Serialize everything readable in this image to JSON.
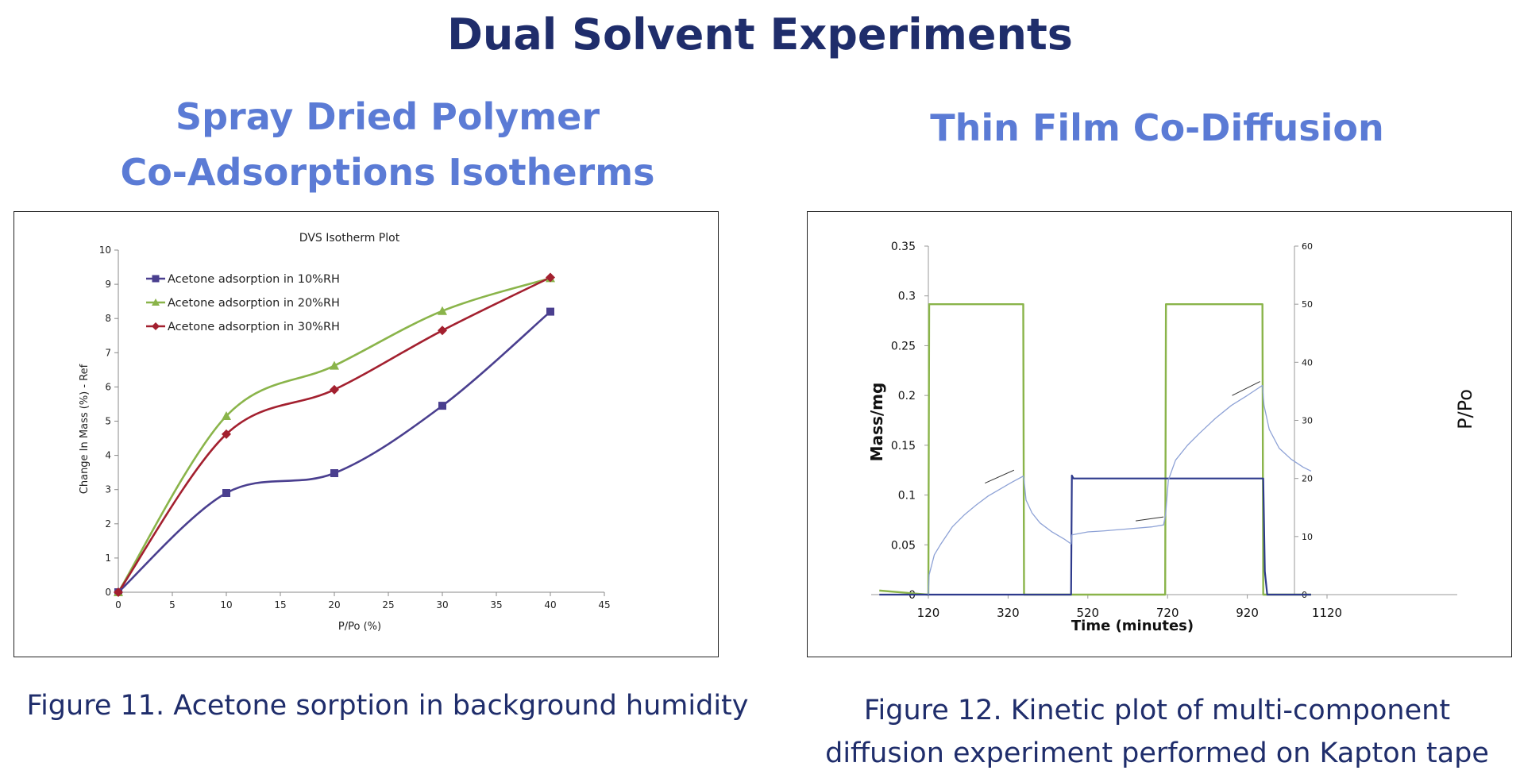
{
  "page": {
    "title": "Dual Solvent Experiments"
  },
  "left": {
    "subtitle_line1": "Spray Dried Polymer",
    "subtitle_line2": "Co-Adsorptions Isotherms",
    "caption": "Figure 11.  Acetone sorption in background humidity"
  },
  "right": {
    "subtitle": "Thin Film Co-Diffusion",
    "caption_line1": "Figure 12.  Kinetic plot of multi-component",
    "caption_line2": "diffusion experiment performed on Kapton tape"
  },
  "chart_data": [
    {
      "type": "line",
      "title": "DVS Isotherm Plot",
      "xlabel": "P/Po (%)",
      "ylabel": "Change In Mass (%) - Ref",
      "xlim": [
        0,
        45
      ],
      "ylim": [
        0,
        10
      ],
      "xticks": [
        "0",
        "5",
        "10",
        "15",
        "20",
        "25",
        "30",
        "35",
        "40",
        "45"
      ],
      "yticks": [
        "0",
        "1",
        "2",
        "3",
        "4",
        "5",
        "6",
        "7",
        "8",
        "9",
        "10"
      ],
      "grid": false,
      "legend_position": "top-left",
      "smooth": true,
      "series": [
        {
          "name": "Acetone adsorption in 10%RH",
          "color": "#4a3f8f",
          "marker": "square",
          "x": [
            0,
            10,
            20,
            30,
            40
          ],
          "y": [
            0,
            2.9,
            3.48,
            5.45,
            8.2
          ]
        },
        {
          "name": "Acetone adsorption in 20%RH",
          "color": "#8ab44a",
          "marker": "triangle",
          "x": [
            0,
            10,
            20,
            30,
            40
          ],
          "y": [
            0,
            5.15,
            6.62,
            8.22,
            9.18
          ]
        },
        {
          "name": "Acetone adsorption in 30%RH",
          "color": "#a3202f",
          "marker": "diamond",
          "x": [
            0,
            10,
            20,
            30,
            40
          ],
          "y": [
            0,
            4.62,
            5.92,
            7.65,
            9.2
          ]
        }
      ]
    },
    {
      "type": "line",
      "xlabel": "Time (minutes)",
      "ylabel": "Mass/mg",
      "y2label": "P/Po",
      "xlim": [
        120,
        1120
      ],
      "ylim": [
        0,
        0.35
      ],
      "y2lim": [
        0,
        60
      ],
      "xticks": [
        "120",
        "320",
        "520",
        "720",
        "920",
        "1120"
      ],
      "yticks": [
        "0",
        "0.05",
        "0.1",
        "0.15",
        "0.2",
        "0.25",
        "0.3",
        "0.35"
      ],
      "y2ticks": [
        "0",
        "10",
        "20",
        "30",
        "40",
        "50",
        "60"
      ],
      "grid": false,
      "series": [
        {
          "color": "#8ab44a",
          "axis": "right",
          "x": [
            -3,
            118,
            120,
            122,
            356,
            358,
            360,
            712,
            714,
            716,
            956,
            958,
            960,
            1080
          ],
          "y": [
            0.7,
            0,
            0,
            50,
            50,
            50,
            0,
            0,
            0,
            50,
            50,
            50,
            0,
            0
          ]
        },
        {
          "color": "#2e3a8c",
          "axis": "right",
          "x": [
            -3,
            478,
            480,
            484,
            960,
            964,
            970,
            1080
          ],
          "y": [
            0,
            0,
            20.5,
            20,
            20,
            4,
            0,
            0
          ]
        },
        {
          "color": "#8ea2d6",
          "axis": "left",
          "x": [
            120,
            122,
            135,
            150,
            180,
            210,
            240,
            270,
            300,
            330,
            358,
            360,
            365,
            380,
            400,
            430,
            460,
            478,
            480,
            520,
            560,
            620,
            680,
            710,
            715,
            722,
            740,
            770,
            800,
            840,
            880,
            920,
            950,
            958,
            962,
            975,
            1000,
            1030,
            1060,
            1080
          ],
          "y": [
            0,
            0.02,
            0.04,
            0.05,
            0.068,
            0.08,
            0.09,
            0.099,
            0.106,
            0.113,
            0.119,
            0.115,
            0.095,
            0.082,
            0.072,
            0.063,
            0.056,
            0.051,
            0.06,
            0.063,
            0.064,
            0.066,
            0.068,
            0.07,
            0.08,
            0.115,
            0.135,
            0.15,
            0.162,
            0.177,
            0.19,
            0.2,
            0.208,
            0.21,
            0.19,
            0.166,
            0.147,
            0.136,
            0.128,
            0.124
          ]
        },
        {
          "color": "#333333",
          "axis": "left",
          "x": [
            262,
            335
          ],
          "y": [
            0.112,
            0.125
          ]
        },
        {
          "color": "#333333",
          "axis": "left",
          "x": [
            640,
            710
          ],
          "y": [
            0.074,
            0.078
          ]
        },
        {
          "color": "#333333",
          "axis": "left",
          "x": [
            882,
            952
          ],
          "y": [
            0.2,
            0.214
          ]
        }
      ]
    }
  ]
}
